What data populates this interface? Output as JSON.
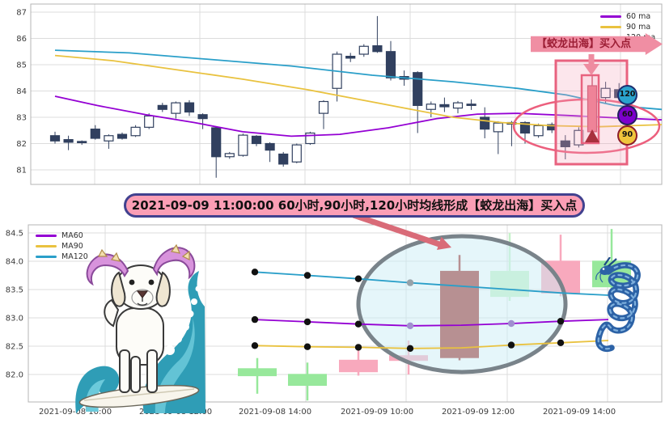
{
  "chart_data": [
    {
      "type": "candlestick+line",
      "title": "",
      "y_ticks": [
        "87",
        "86",
        "85",
        "84",
        "83",
        "82",
        "81"
      ],
      "ylim": [
        80.4,
        87.3
      ],
      "grid": true,
      "legend_position": "upper right",
      "legend": [
        {
          "name": "60 ma",
          "color": "#9400d3"
        },
        {
          "name": "90 ma",
          "color": "#e9c23f"
        },
        {
          "name": "120 ma",
          "color": "#2a9fc9"
        }
      ],
      "candle_up_style": "hollow-white",
      "candle_down_style": "filled-navy",
      "candle_color": "#31405f",
      "candles": [
        [
          82.3,
          82.45,
          82.0,
          82.1,
          0
        ],
        [
          82.15,
          82.3,
          81.75,
          82.05,
          0
        ],
        [
          82.08,
          82.12,
          81.95,
          82.04,
          0
        ],
        [
          82.55,
          82.7,
          82.15,
          82.2,
          0
        ],
        [
          82.1,
          82.35,
          81.8,
          82.3,
          1
        ],
        [
          82.35,
          82.42,
          82.15,
          82.2,
          0
        ],
        [
          82.3,
          82.7,
          82.25,
          82.62,
          1
        ],
        [
          82.62,
          83.15,
          82.55,
          83.05,
          1
        ],
        [
          83.45,
          83.55,
          83.2,
          83.3,
          0
        ],
        [
          83.15,
          83.6,
          82.95,
          83.55,
          1
        ],
        [
          83.55,
          83.65,
          83.05,
          83.2,
          0
        ],
        [
          83.1,
          83.15,
          82.55,
          82.95,
          0
        ],
        [
          82.6,
          82.65,
          80.7,
          81.5,
          0
        ],
        [
          81.5,
          81.68,
          81.42,
          81.62,
          1
        ],
        [
          81.55,
          82.38,
          81.5,
          82.32,
          1
        ],
        [
          82.28,
          82.32,
          81.9,
          82.0,
          0
        ],
        [
          82.0,
          82.05,
          81.3,
          81.75,
          0
        ],
        [
          81.6,
          81.68,
          81.12,
          81.22,
          0
        ],
        [
          81.3,
          82.0,
          81.25,
          81.95,
          1
        ],
        [
          82.0,
          82.45,
          81.95,
          82.4,
          1
        ],
        [
          83.15,
          83.65,
          82.55,
          83.6,
          1
        ],
        [
          84.1,
          85.5,
          83.6,
          85.4,
          1
        ],
        [
          85.32,
          85.45,
          85.1,
          85.25,
          0
        ],
        [
          85.4,
          85.78,
          85.3,
          85.7,
          1
        ],
        [
          85.72,
          86.85,
          85.45,
          85.5,
          0
        ],
        [
          85.5,
          85.9,
          84.4,
          84.5,
          0
        ],
        [
          84.55,
          84.78,
          84.2,
          84.45,
          0
        ],
        [
          84.7,
          84.75,
          82.4,
          83.45,
          0
        ],
        [
          83.3,
          83.6,
          83.0,
          83.5,
          1
        ],
        [
          83.48,
          83.75,
          83.2,
          83.4,
          0
        ],
        [
          83.35,
          83.62,
          83.15,
          83.55,
          1
        ],
        [
          83.5,
          83.68,
          83.28,
          83.45,
          0
        ],
        [
          83.0,
          83.38,
          82.2,
          82.55,
          0
        ],
        [
          82.45,
          82.85,
          81.6,
          82.78,
          1
        ],
        [
          82.8,
          82.86,
          81.9,
          82.74,
          0
        ],
        [
          82.8,
          82.85,
          82.0,
          82.4,
          0
        ],
        [
          82.3,
          82.76,
          82.22,
          82.68,
          1
        ],
        [
          82.72,
          82.8,
          82.4,
          82.52,
          0
        ],
        [
          82.1,
          82.32,
          81.4,
          81.88,
          0
        ],
        [
          81.95,
          82.62,
          81.85,
          82.5,
          1
        ],
        [
          82.45,
          84.6,
          82.3,
          84.2,
          1
        ],
        [
          83.75,
          84.35,
          83.55,
          84.1,
          1
        ],
        [
          84.05,
          84.3,
          83.6,
          83.75,
          0
        ]
      ],
      "signal_index": 40,
      "series": [
        {
          "name": "60 ma",
          "color": "#9400d3",
          "points": [
            [
              68,
              83.8
            ],
            [
              120,
              83.45
            ],
            [
              180,
              83.1
            ],
            [
              240,
              82.8
            ],
            [
              300,
              82.45
            ],
            [
              360,
              82.28
            ],
            [
              420,
              82.35
            ],
            [
              480,
              82.6
            ],
            [
              540,
              82.95
            ],
            [
              590,
              83.12
            ],
            [
              640,
              83.15
            ],
            [
              700,
              83.07
            ],
            [
              760,
              82.98
            ],
            [
              818,
              82.9
            ]
          ]
        },
        {
          "name": "90 ma",
          "color": "#e9c23f",
          "points": [
            [
              68,
              85.35
            ],
            [
              140,
              85.15
            ],
            [
              220,
              84.8
            ],
            [
              300,
              84.45
            ],
            [
              380,
              84.05
            ],
            [
              440,
              83.7
            ],
            [
              500,
              83.35
            ],
            [
              560,
              83.0
            ],
            [
              620,
              82.8
            ],
            [
              680,
              82.68
            ],
            [
              740,
              82.64
            ],
            [
              818,
              82.72
            ]
          ]
        },
        {
          "name": "120 ma",
          "color": "#2a9fc9",
          "points": [
            [
              68,
              85.55
            ],
            [
              160,
              85.45
            ],
            [
              260,
              85.2
            ],
            [
              360,
              84.95
            ],
            [
              460,
              84.6
            ],
            [
              560,
              84.35
            ],
            [
              640,
              84.1
            ],
            [
              700,
              83.85
            ],
            [
              760,
              83.45
            ],
            [
              818,
              83.3
            ]
          ]
        }
      ],
      "annotations": {
        "banner_text": "【蛟龙出海】买入点",
        "highlight_box": true,
        "highlight_ellipse": true,
        "signal_circles": [
          {
            "label": "120",
            "fill": "#2aa3cd",
            "border": "#1d2f70"
          },
          {
            "label": "60",
            "fill": "#7d00cd",
            "border": "#241f5e"
          },
          {
            "label": "90",
            "fill": "#f0c53c",
            "border": "#8d1d29"
          }
        ]
      }
    },
    {
      "type": "candlestick+line",
      "title": "",
      "y_ticks": [
        "84.5",
        "84.0",
        "83.5",
        "83.0",
        "82.5",
        "82.0"
      ],
      "x_ticks": [
        "2021-09-08 10:00",
        "2021-09-08 12:00",
        "2021-09-08 14:00",
        "2021-09-09 10:00",
        "2021-09-09 12:00",
        "2021-09-09 14:00"
      ],
      "ylim": [
        81.7,
        84.65
      ],
      "grid": true,
      "legend_position": "upper left",
      "legend": [
        {
          "name": "MA60",
          "color": "#9400d3"
        },
        {
          "name": "MA90",
          "color": "#e9c23f"
        },
        {
          "name": "MA120",
          "color": "#2a9fc9"
        }
      ],
      "candle_up_color": "#f8a9bd",
      "candle_down_color": "#97e89b",
      "signal_candle_color": "#a2332e",
      "candles": [
        [
          318,
          82.11,
          82.29,
          81.66,
          81.97,
          "g"
        ],
        [
          380,
          82.01,
          82.21,
          81.54,
          81.8,
          "g"
        ],
        [
          443,
          82.04,
          82.51,
          81.98,
          82.26,
          "p"
        ],
        [
          505,
          82.24,
          82.6,
          82.0,
          82.34,
          "p"
        ],
        [
          568,
          82.29,
          84.11,
          82.25,
          83.83,
          "r"
        ],
        [
          630,
          83.83,
          84.5,
          83.3,
          83.37,
          "gf"
        ],
        [
          693,
          83.43,
          84.47,
          83.38,
          84.01,
          "p"
        ],
        [
          756,
          84.01,
          84.57,
          83.48,
          83.54,
          "g"
        ]
      ],
      "series": [
        {
          "name": "MA120",
          "color": "#2a9fc9",
          "faded_dot": "#97a2a9",
          "points": [
            [
              315,
              83.81,
              1
            ],
            [
              380,
              83.75,
              1
            ],
            [
              443,
              83.69,
              1
            ],
            [
              507,
              83.62,
              2
            ],
            [
              570,
              83.56,
              0
            ],
            [
              632,
              83.5,
              0
            ],
            [
              693,
              83.44,
              0
            ],
            [
              752,
              83.4,
              0
            ]
          ]
        },
        {
          "name": "MA60",
          "color": "#9400d3",
          "faded_dot": "#a08fd0",
          "points": [
            [
              315,
              82.97,
              1
            ],
            [
              380,
              82.93,
              1
            ],
            [
              443,
              82.89,
              1
            ],
            [
              507,
              82.86,
              2
            ],
            [
              570,
              82.87,
              0
            ],
            [
              632,
              82.9,
              2
            ],
            [
              693,
              82.94,
              1
            ],
            [
              752,
              82.97,
              0
            ]
          ]
        },
        {
          "name": "MA90",
          "color": "#e9c23f",
          "faded_dot": "#8a8a8a",
          "points": [
            [
              315,
              82.51,
              1
            ],
            [
              380,
              82.49,
              1
            ],
            [
              443,
              82.48,
              1
            ],
            [
              507,
              82.46,
              1
            ],
            [
              570,
              82.47,
              0
            ],
            [
              632,
              82.52,
              1
            ],
            [
              693,
              82.56,
              1
            ],
            [
              752,
              82.6,
              0
            ]
          ]
        }
      ],
      "annotation": {
        "text": "2021-09-09 11:00:00 60小时,90小时,120小时均线形成【蛟龙出海】买入点"
      }
    }
  ]
}
